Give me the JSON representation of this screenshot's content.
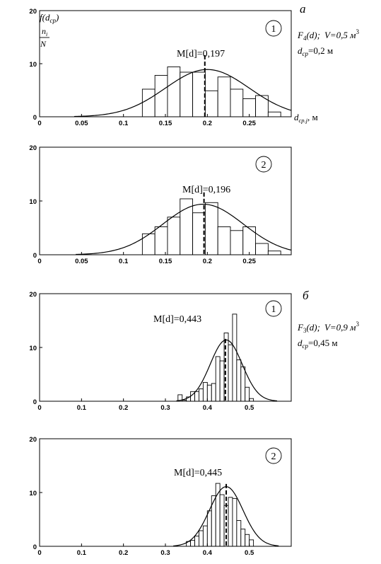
{
  "section_labels": {
    "a": "а",
    "b": "б"
  },
  "annotations": {
    "a": {
      "func_F": "F",
      "func_sub": "4",
      "func_rest": "(d);",
      "v_text": "V=0,5 м",
      "v_sup": "3",
      "dcp_d": "d",
      "dcp_sub": "ср",
      "dcp_rest": "=0,2 м"
    },
    "b": {
      "func_F": "F",
      "func_sub": "3",
      "func_rest": "(d);",
      "v_text": "V=0,9 м",
      "v_sup": "3",
      "dcp_d": "d",
      "dcp_sub": "ср",
      "dcp_rest": "=0,45 м"
    }
  },
  "y_label": {
    "f_text": "f(d",
    "f_sub": "ср",
    "f_close": ")",
    "ni": "n",
    "ni_sub": "i",
    "N": "N"
  },
  "x_label": {
    "d": "d",
    "sub": "ср.j",
    "unit": ", м"
  },
  "chart_data": [
    {
      "type": "bar",
      "panel_number": "1",
      "mean_label": "M[d]=0,197",
      "mean": 0.197,
      "xlim": [
        0,
        0.3
      ],
      "ylim": [
        0,
        20
      ],
      "xticks": [
        "0",
        "0.05",
        "0.1",
        "0.15",
        "0.2",
        "0.25"
      ],
      "yticks": [
        "20",
        "10",
        "0"
      ],
      "bins": [
        {
          "x": 0.13,
          "y": 5.2
        },
        {
          "x": 0.145,
          "y": 7.8
        },
        {
          "x": 0.16,
          "y": 9.4
        },
        {
          "x": 0.175,
          "y": 8.4
        },
        {
          "x": 0.19,
          "y": 8.4
        },
        {
          "x": 0.205,
          "y": 4.9
        },
        {
          "x": 0.22,
          "y": 7.5
        },
        {
          "x": 0.235,
          "y": 5.2
        },
        {
          "x": 0.25,
          "y": 3.4
        },
        {
          "x": 0.265,
          "y": 4.0
        },
        {
          "x": 0.28,
          "y": 0.9
        }
      ],
      "bin_width": 0.015,
      "curve": {
        "mu": 0.2,
        "sigma": 0.05,
        "peak": 8.9
      }
    },
    {
      "type": "bar",
      "panel_number": "2",
      "mean_label": "M[d]=0,196",
      "mean": 0.196,
      "xlim": [
        0,
        0.3
      ],
      "ylim": [
        0,
        20
      ],
      "xticks": [
        "0",
        "0.05",
        "0.1",
        "0.15",
        "0.2",
        "0.25"
      ],
      "yticks": [
        "20",
        "10",
        "0"
      ],
      "bins": [
        {
          "x": 0.13,
          "y": 3.9
        },
        {
          "x": 0.145,
          "y": 5.2
        },
        {
          "x": 0.16,
          "y": 7.0
        },
        {
          "x": 0.175,
          "y": 10.4
        },
        {
          "x": 0.19,
          "y": 7.8
        },
        {
          "x": 0.205,
          "y": 9.7
        },
        {
          "x": 0.22,
          "y": 5.2
        },
        {
          "x": 0.235,
          "y": 4.5
        },
        {
          "x": 0.25,
          "y": 5.2
        },
        {
          "x": 0.265,
          "y": 2.1
        },
        {
          "x": 0.28,
          "y": 0.7
        }
      ],
      "bin_width": 0.015,
      "curve": {
        "mu": 0.195,
        "sigma": 0.048,
        "peak": 9.4
      }
    },
    {
      "type": "bar",
      "panel_number": "1",
      "mean_label": "M[d]=0,443",
      "mean": 0.443,
      "xlim": [
        0,
        0.6
      ],
      "ylim": [
        0,
        20
      ],
      "xticks": [
        "0",
        "0.1",
        "0.2",
        "0.3",
        "0.4",
        "0.5"
      ],
      "yticks": [
        "20",
        "10",
        "0"
      ],
      "bins": [
        {
          "x": 0.335,
          "y": 1.2
        },
        {
          "x": 0.345,
          "y": 0.2
        },
        {
          "x": 0.355,
          "y": 0.8
        },
        {
          "x": 0.365,
          "y": 1.8
        },
        {
          "x": 0.375,
          "y": 1.8
        },
        {
          "x": 0.385,
          "y": 2.3
        },
        {
          "x": 0.395,
          "y": 3.5
        },
        {
          "x": 0.405,
          "y": 3.0
        },
        {
          "x": 0.415,
          "y": 3.3
        },
        {
          "x": 0.425,
          "y": 8.3
        },
        {
          "x": 0.435,
          "y": 7.5
        },
        {
          "x": 0.445,
          "y": 12.7
        },
        {
          "x": 0.455,
          "y": 10.5
        },
        {
          "x": 0.465,
          "y": 16.2
        },
        {
          "x": 0.475,
          "y": 7.7
        },
        {
          "x": 0.485,
          "y": 6.4
        },
        {
          "x": 0.495,
          "y": 2.6
        },
        {
          "x": 0.505,
          "y": 0.5
        }
      ],
      "bin_width": 0.01,
      "curve": {
        "mu": 0.445,
        "sigma": 0.038,
        "peak": 11.4
      }
    },
    {
      "type": "bar",
      "panel_number": "2",
      "mean_label": "M[d]=0,445",
      "mean": 0.445,
      "xlim": [
        0,
        0.6
      ],
      "ylim": [
        0,
        20
      ],
      "xticks": [
        "0",
        "0.1",
        "0.2",
        "0.3",
        "0.4",
        "0.5"
      ],
      "yticks": [
        "20",
        "10",
        "0"
      ],
      "bins": [
        {
          "x": 0.355,
          "y": 0.9
        },
        {
          "x": 0.365,
          "y": 1.1
        },
        {
          "x": 0.375,
          "y": 1.9
        },
        {
          "x": 0.385,
          "y": 2.9
        },
        {
          "x": 0.395,
          "y": 3.8
        },
        {
          "x": 0.405,
          "y": 6.6
        },
        {
          "x": 0.415,
          "y": 9.4
        },
        {
          "x": 0.425,
          "y": 11.7
        },
        {
          "x": 0.435,
          "y": 9.6
        },
        {
          "x": 0.445,
          "y": 7.6
        },
        {
          "x": 0.455,
          "y": 9.1
        },
        {
          "x": 0.465,
          "y": 8.9
        },
        {
          "x": 0.475,
          "y": 4.8
        },
        {
          "x": 0.485,
          "y": 3.2
        },
        {
          "x": 0.495,
          "y": 2.2
        },
        {
          "x": 0.505,
          "y": 1.2
        }
      ],
      "bin_width": 0.01,
      "curve": {
        "mu": 0.445,
        "sigma": 0.04,
        "peak": 11.1
      }
    }
  ]
}
